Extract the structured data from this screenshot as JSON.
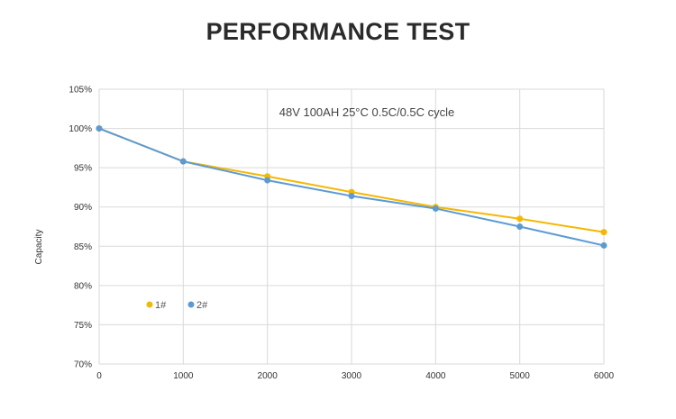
{
  "page": {
    "title": "PERFORMANCE TEST"
  },
  "chart_data": {
    "type": "line",
    "title": "PERFORMANCE TEST",
    "annotation": "48V 100AH 25°C 0.5C/0.5C cycle",
    "xlabel": "",
    "ylabel": "Capacity",
    "x": [
      0,
      1000,
      2000,
      3000,
      4000,
      5000,
      6000
    ],
    "xlim": [
      0,
      6000
    ],
    "ylim": [
      70,
      105
    ],
    "yticks": [
      70,
      75,
      80,
      85,
      90,
      95,
      100,
      105
    ],
    "xticks": [
      0,
      1000,
      2000,
      3000,
      4000,
      5000,
      6000
    ],
    "ytick_labels": [
      "70%",
      "75%",
      "80%",
      "85%",
      "90%",
      "95%",
      "100%",
      "105%"
    ],
    "xtick_labels": [
      "0",
      "1000",
      "2000",
      "3000",
      "4000",
      "5000",
      "6000"
    ],
    "grid": true,
    "legend_position": "lower-left",
    "series": [
      {
        "name": "1#",
        "color": "#F5B800",
        "values": [
          100,
          95.8,
          93.9,
          91.9,
          90.0,
          88.5,
          86.8
        ]
      },
      {
        "name": "2#",
        "color": "#5B9BD5",
        "values": [
          100,
          95.8,
          93.4,
          91.4,
          89.8,
          87.5,
          85.1
        ]
      }
    ]
  }
}
